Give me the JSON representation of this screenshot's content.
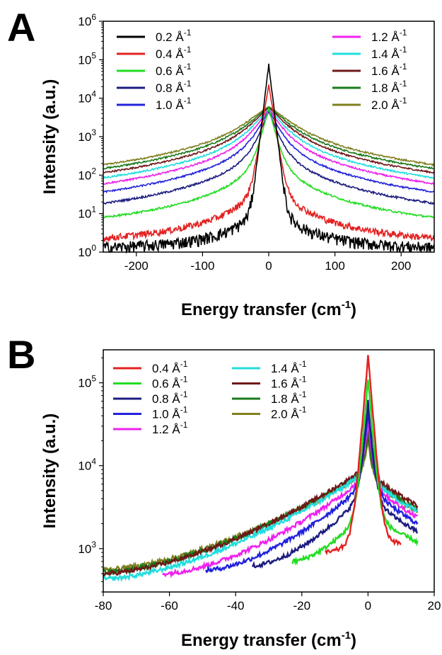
{
  "chart_data": [
    {
      "panel_label": "A",
      "type": "line",
      "xlabel": "Energy transfer (cm",
      "xlabel_sup": "-1",
      "xlabel_close": ")",
      "ylabel": "Intensity (a.u.)",
      "xlim": [
        -250,
        250
      ],
      "ylim": [
        1,
        1000000
      ],
      "yscale": "log",
      "x_ticks": [
        -200,
        -100,
        0,
        100,
        200
      ],
      "y_ticks": [
        {
          "base": "10",
          "exp": "0",
          "value": 1
        },
        {
          "base": "10",
          "exp": "1",
          "value": 10
        },
        {
          "base": "10",
          "exp": "2",
          "value": 100
        },
        {
          "base": "10",
          "exp": "3",
          "value": 1000
        },
        {
          "base": "10",
          "exp": "4",
          "value": 10000
        },
        {
          "base": "10",
          "exp": "5",
          "value": 100000
        },
        {
          "base": "10",
          "exp": "6",
          "value": 1000000
        }
      ],
      "legend_columns": 2,
      "legend_placement": "top",
      "series": [
        {
          "name": "0.2 Å",
          "sup": "-1",
          "color": "#000000",
          "peak": 150000,
          "base": 1,
          "width": 3,
          "shoulder": 120,
          "noise": 0.35
        },
        {
          "name": "0.4 Å",
          "sup": "-1",
          "color": "#e32222",
          "peak": 45000,
          "base": 1.1,
          "width": 4,
          "shoulder": 300,
          "noise": 0.2
        },
        {
          "name": "0.6 Å",
          "sup": "-1",
          "color": "#22dd22",
          "peak": 9000,
          "base": 1.2,
          "width": 6,
          "shoulder": 900,
          "noise": 0.06
        },
        {
          "name": "0.8 Å",
          "sup": "-1",
          "color": "#1c1c80",
          "peak": 6000,
          "base": 1.3,
          "width": 8,
          "shoulder": 1500,
          "noise": 0.06
        },
        {
          "name": "1.0 Å",
          "sup": "-1",
          "color": "#2222dd",
          "peak": 5000,
          "base": 1.4,
          "width": 10,
          "shoulder": 2200,
          "noise": 0.05
        },
        {
          "name": "1.2 Å",
          "sup": "-1",
          "color": "#ee22ee",
          "peak": 4500,
          "base": 1.5,
          "width": 12,
          "shoulder": 2800,
          "noise": 0.05
        },
        {
          "name": "1.4 Å",
          "sup": "-1",
          "color": "#22dddd",
          "peak": 4200,
          "base": 1.6,
          "width": 14,
          "shoulder": 3200,
          "noise": 0.05
        },
        {
          "name": "1.6 Å",
          "sup": "-1",
          "color": "#701818",
          "peak": 4000,
          "base": 1.7,
          "width": 16,
          "shoulder": 3600,
          "noise": 0.05
        },
        {
          "name": "1.8 Å",
          "sup": "-1",
          "color": "#1a7a1a",
          "peak": 3800,
          "base": 1.8,
          "width": 18,
          "shoulder": 3900,
          "noise": 0.05
        },
        {
          "name": "2.0 Å",
          "sup": "-1",
          "color": "#808020",
          "peak": 3600,
          "base": 2.0,
          "width": 20,
          "shoulder": 4200,
          "noise": 0.05
        }
      ]
    },
    {
      "panel_label": "B",
      "type": "line",
      "xlabel": "Energy transfer (cm",
      "xlabel_sup": "-1",
      "xlabel_close": ")",
      "ylabel": "Intensity (a.u.)",
      "xlim": [
        -80,
        20
      ],
      "ylim": [
        300,
        250000
      ],
      "yscale": "log",
      "x_ticks": [
        -80,
        -60,
        -40,
        -20,
        0,
        20
      ],
      "y_ticks": [
        {
          "base": "10",
          "exp": "3",
          "value": 1000
        },
        {
          "base": "10",
          "exp": "4",
          "value": 10000
        },
        {
          "base": "10",
          "exp": "5",
          "value": 100000
        }
      ],
      "legend_columns": 2,
      "legend_placement": "top-left",
      "series": [
        {
          "name": "0.4 Å",
          "sup": "-1",
          "color": "#e32222",
          "x_start": -13,
          "x_end": 10,
          "y_start": 900,
          "y_end": 1150,
          "peak": 210000,
          "center": 1500
        },
        {
          "name": "0.6 Å",
          "sup": "-1",
          "color": "#22dd22",
          "x_start": -23,
          "x_end": 15,
          "y_start": 700,
          "y_end": 1200,
          "peak": 110000,
          "center": 3000
        },
        {
          "name": "0.8 Å",
          "sup": "-1",
          "color": "#1c1c80",
          "x_start": -35,
          "x_end": 15,
          "y_start": 620,
          "y_end": 1600,
          "peak": 55000,
          "center": 5000
        },
        {
          "name": "1.0 Å",
          "sup": "-1",
          "color": "#2222dd",
          "x_start": -49,
          "x_end": 15,
          "y_start": 550,
          "y_end": 2000,
          "peak": 40000,
          "center": 6500
        },
        {
          "name": "1.2 Å",
          "sup": "-1",
          "color": "#ee22ee",
          "x_start": -62,
          "x_end": 15,
          "y_start": 500,
          "y_end": 2400,
          "peak": 30000,
          "center": 7500
        },
        {
          "name": "1.4 Å",
          "sup": "-1",
          "color": "#22dddd",
          "x_start": -80,
          "x_end": 15,
          "y_start": 430,
          "y_end": 2800,
          "peak": 25000,
          "center": 8500
        },
        {
          "name": "1.6 Å",
          "sup": "-1",
          "color": "#701818",
          "x_start": -80,
          "x_end": 15,
          "y_start": 500,
          "y_end": 3300,
          "peak": 20000,
          "center": 9500
        },
        {
          "name": "1.8 Å",
          "sup": "-1",
          "color": "#1a7a1a",
          "x_start": -80,
          "x_end": 15,
          "y_start": 520,
          "y_end": 3000,
          "peak": 15000,
          "center": 9000
        },
        {
          "name": "2.0 Å",
          "sup": "-1",
          "color": "#808020",
          "x_start": -80,
          "x_end": 15,
          "y_start": 560,
          "y_end": 2800,
          "peak": 12000,
          "center": 8500
        }
      ]
    }
  ]
}
